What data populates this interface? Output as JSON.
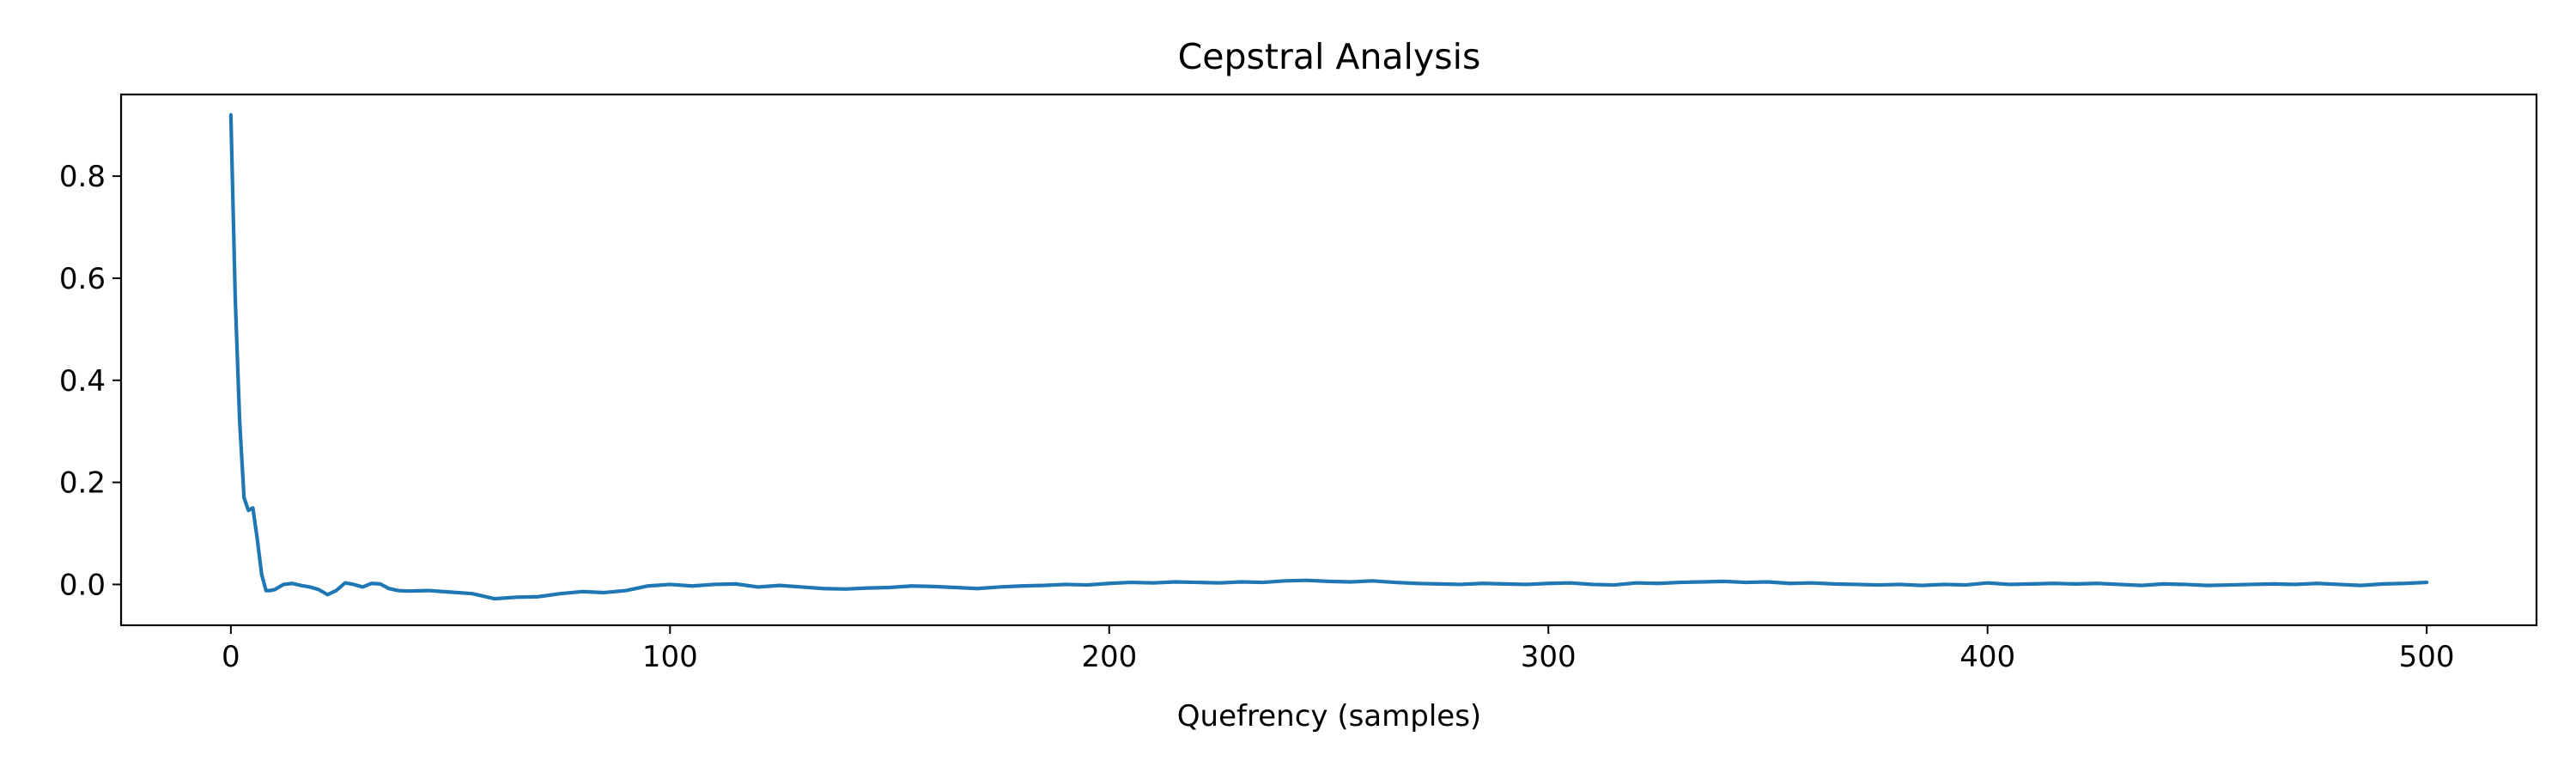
{
  "chart_data": {
    "type": "line",
    "title": "Cepstral Analysis",
    "xlabel": "Quefrency (samples)",
    "ylabel": "",
    "xlim": [
      -25,
      525
    ],
    "ylim": [
      -0.08,
      0.96
    ],
    "xticks": [
      0,
      100,
      200,
      300,
      400,
      500
    ],
    "yticks": [
      0.0,
      0.2,
      0.4,
      0.6,
      0.8
    ],
    "xtick_labels": [
      "0",
      "100",
      "200",
      "300",
      "400",
      "500"
    ],
    "ytick_labels": [
      "0.0",
      "0.2",
      "0.4",
      "0.6",
      "0.8"
    ],
    "grid": false,
    "legend": "none",
    "colors": {
      "line": "#1f77b4",
      "axes": "#000000",
      "background": "#ffffff"
    },
    "series": [
      {
        "x": [
          0,
          1,
          2,
          3,
          4,
          5,
          6,
          7,
          8,
          9,
          10,
          12,
          14,
          16,
          18,
          20,
          22,
          24,
          26,
          28,
          30,
          32,
          34,
          36,
          38,
          40,
          45,
          50,
          55,
          60,
          65,
          70,
          75,
          80,
          85,
          90,
          95,
          100,
          105,
          110,
          115,
          120,
          125,
          130,
          135,
          140,
          145,
          150,
          155,
          160,
          165,
          170,
          175,
          180,
          185,
          190,
          195,
          200,
          205,
          210,
          215,
          220,
          225,
          230,
          235,
          240,
          245,
          250,
          255,
          260,
          265,
          270,
          275,
          280,
          285,
          290,
          295,
          300,
          305,
          310,
          315,
          320,
          325,
          330,
          335,
          340,
          345,
          350,
          355,
          360,
          365,
          370,
          375,
          380,
          385,
          390,
          395,
          400,
          405,
          410,
          415,
          420,
          425,
          430,
          435,
          440,
          445,
          450,
          455,
          460,
          465,
          470,
          475,
          480,
          485,
          490,
          495,
          500
        ],
        "y": [
          0.92,
          0.56,
          0.32,
          0.17,
          0.145,
          0.15,
          0.09,
          0.02,
          -0.012,
          -0.012,
          -0.01,
          0.0,
          0.002,
          -0.002,
          -0.005,
          -0.01,
          -0.02,
          -0.012,
          0.003,
          0.0,
          -0.005,
          0.002,
          0.001,
          -0.008,
          -0.012,
          -0.013,
          -0.012,
          -0.015,
          -0.018,
          -0.028,
          -0.025,
          -0.024,
          -0.018,
          -0.014,
          -0.016,
          -0.012,
          -0.003,
          0.0,
          -0.003,
          0.0,
          0.001,
          -0.005,
          -0.002,
          -0.005,
          -0.008,
          -0.009,
          -0.007,
          -0.006,
          -0.003,
          -0.004,
          -0.006,
          -0.008,
          -0.005,
          -0.003,
          -0.002,
          0.0,
          -0.001,
          0.002,
          0.004,
          0.003,
          0.005,
          0.004,
          0.003,
          0.005,
          0.004,
          0.007,
          0.008,
          0.006,
          0.005,
          0.007,
          0.004,
          0.002,
          0.001,
          0.0,
          0.002,
          0.001,
          0.0,
          0.002,
          0.003,
          0.0,
          -0.001,
          0.003,
          0.002,
          0.004,
          0.005,
          0.006,
          0.004,
          0.005,
          0.002,
          0.003,
          0.001,
          0.0,
          -0.001,
          0.0,
          -0.002,
          0.0,
          -0.001,
          0.003,
          0.0,
          0.001,
          0.002,
          0.001,
          0.002,
          0.0,
          -0.002,
          0.001,
          0.0,
          -0.002,
          -0.001,
          0.0,
          0.001,
          0.0,
          0.002,
          0.0,
          -0.002,
          0.001,
          0.002,
          0.004
        ]
      }
    ]
  }
}
